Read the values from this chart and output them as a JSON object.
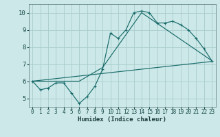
{
  "xlabel": "Humidex (Indice chaleur)",
  "background_color": "#cce8e8",
  "grid_color": "#aacccc",
  "line_color": "#1a6b6b",
  "xlim": [
    -0.5,
    23.5
  ],
  "ylim": [
    4.5,
    10.5
  ],
  "xticks": [
    0,
    1,
    2,
    3,
    4,
    5,
    6,
    7,
    8,
    9,
    10,
    11,
    12,
    13,
    14,
    15,
    16,
    17,
    18,
    19,
    20,
    21,
    22,
    23
  ],
  "yticks": [
    5,
    6,
    7,
    8,
    9,
    10
  ],
  "line1_x": [
    0,
    1,
    2,
    3,
    4,
    5,
    6,
    7,
    8,
    9,
    10,
    11,
    12,
    13,
    14,
    15,
    16,
    17,
    18,
    19,
    20,
    21,
    22,
    23
  ],
  "line1_y": [
    6.0,
    5.5,
    5.6,
    5.9,
    5.9,
    5.3,
    4.7,
    5.1,
    5.7,
    6.7,
    8.8,
    8.5,
    9.0,
    10.0,
    10.1,
    10.0,
    9.4,
    9.4,
    9.5,
    9.3,
    9.0,
    8.5,
    7.9,
    7.2
  ],
  "line2_x": [
    0,
    23
  ],
  "line2_y": [
    6.0,
    7.15
  ],
  "line3_x": [
    0,
    6,
    9,
    14,
    23
  ],
  "line3_y": [
    6.0,
    6.0,
    6.8,
    10.0,
    7.2
  ]
}
